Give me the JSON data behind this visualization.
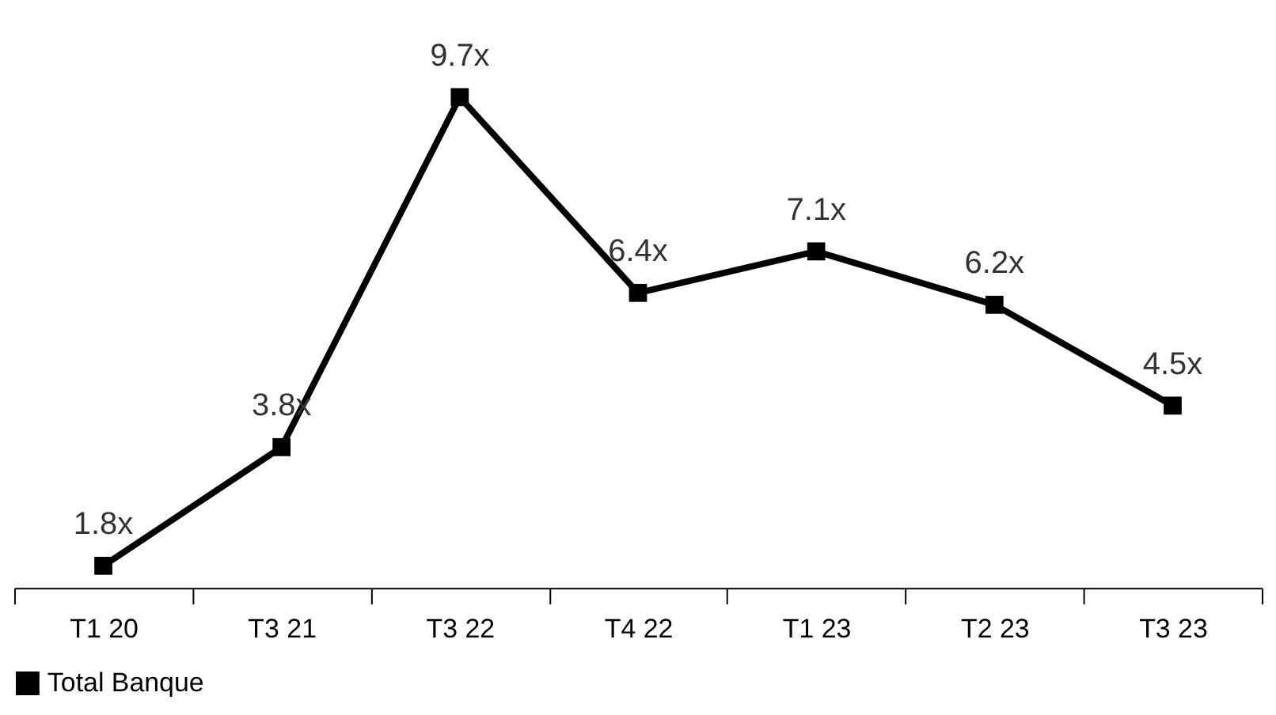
{
  "chart_data": {
    "type": "line",
    "categories": [
      "T1 20",
      "T3 21",
      "T3 22",
      "T4 22",
      "T1 23",
      "T2 23",
      "T3 23"
    ],
    "series": [
      {
        "name": "Total Banque",
        "color": "#000000",
        "values": [
          1.8,
          3.8,
          9.7,
          6.4,
          7.1,
          6.2,
          4.5
        ],
        "value_labels": [
          "1.8x",
          "3.8x",
          "9.7x",
          "6.4x",
          "7.1x",
          "6.2x",
          "4.5x"
        ]
      }
    ],
    "tick_labels": "x",
    "grid": false,
    "legend": "bottom",
    "marker": "square",
    "line_style": "solid"
  }
}
